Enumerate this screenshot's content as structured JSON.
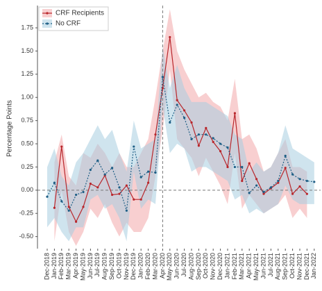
{
  "chart_data": {
    "type": "line",
    "y_label": "Percentage Points",
    "categories": [
      "Dec-2018",
      "Jan-2019",
      "Feb-2019",
      "Mar-2019",
      "Apr-2019",
      "May-2019",
      "Jun-2019",
      "Jul-2019",
      "Aug-2019",
      "Sep-2019",
      "Oct-2019",
      "Nov-2019",
      "Dec-2019",
      "Jan-2020",
      "Feb-2020",
      "Mar-2020",
      "Apr-2020",
      "May-2020",
      "Jun-2020",
      "Jul-2020",
      "Aug-2020",
      "Sep-2020",
      "Oct-2020",
      "Nov-2020",
      "Dec-2020",
      "Jan-2021",
      "Feb-2021",
      "Mar-2021",
      "Apr-2021",
      "May-2021",
      "Jun-2021",
      "Jul-2021",
      "Aug-2021",
      "Sep-2021",
      "Oct-2021",
      "Nov-2021",
      "Dec-2021",
      "Jan-2022"
    ],
    "ylim": [
      -0.63,
      1.99
    ],
    "yticks": [
      {
        "value": -0.5,
        "label": "-0.50"
      },
      {
        "value": -0.25,
        "label": "-0.25"
      },
      {
        "value": 0,
        "label": "0.00"
      },
      {
        "value": 0.25,
        "label": "0.25"
      },
      {
        "value": 0.5,
        "label": "0.50"
      },
      {
        "value": 0.75,
        "label": "0.75"
      },
      {
        "value": 1,
        "label": "1.00"
      },
      {
        "value": 1.25,
        "label": "1.25"
      },
      {
        "value": 1.5,
        "label": "1.50"
      },
      {
        "value": 1.75,
        "label": "1.75"
      }
    ],
    "hline": 0,
    "vline": "Apr-2020",
    "legend": "top-left",
    "series": [
      {
        "name": "CRF Recipients",
        "color": "#b8262b",
        "band_color": "#f2a7a9",
        "line_style": "solid",
        "values": [
          null,
          -0.19,
          0.47,
          -0.18,
          -0.34,
          -0.18,
          0.07,
          0.03,
          0.16,
          -0.05,
          -0.04,
          0.05,
          -0.1,
          -0.1,
          0.08,
          0.6,
          1.1,
          1.65,
          0.97,
          0.86,
          0.73,
          0.48,
          0.67,
          0.52,
          0.42,
          0.25,
          0.83,
          0.1,
          0.29,
          0.12,
          -0.04,
          0.02,
          0.08,
          0.24,
          -0.04,
          0.04,
          -0.04,
          null
        ],
        "upper": [
          null,
          0.3,
          0.6,
          0.15,
          0.05,
          0.4,
          0.35,
          0.5,
          0.4,
          0.25,
          0.4,
          0.25,
          0.25,
          0.4,
          0.55,
          1.0,
          1.5,
          1.95,
          1.5,
          1.3,
          1.15,
          1.0,
          1.05,
          0.95,
          0.9,
          0.75,
          1.2,
          0.55,
          0.6,
          0.45,
          0.2,
          0.25,
          0.4,
          0.55,
          0.25,
          0.25,
          0.2,
          null
        ],
        "lower": [
          null,
          -0.55,
          0.0,
          -0.45,
          -0.6,
          -0.45,
          -0.2,
          -0.3,
          -0.15,
          -0.35,
          -0.5,
          -0.35,
          -0.45,
          -0.45,
          -0.3,
          0.15,
          0.65,
          1.3,
          0.55,
          0.45,
          0.35,
          0.15,
          0.35,
          0.2,
          0.05,
          -0.15,
          0.4,
          -0.2,
          -0.05,
          -0.15,
          -0.25,
          -0.2,
          -0.15,
          -0.05,
          -0.3,
          -0.2,
          -0.3,
          null
        ]
      },
      {
        "name": "No CRF",
        "color": "#1f5f86",
        "band_color": "#a7cde0",
        "line_style": "dotted",
        "values": [
          -0.07,
          0.08,
          -0.12,
          -0.22,
          -0.05,
          -0.02,
          0.22,
          0.32,
          0.17,
          0.24,
          0.03,
          -0.22,
          0.47,
          0.14,
          0.2,
          0.19,
          1.22,
          0.73,
          0.92,
          0.78,
          0.55,
          0.6,
          0.6,
          0.56,
          0.5,
          0.46,
          0.25,
          0.25,
          -0.03,
          0.05,
          -0.02,
          0.03,
          0.1,
          0.37,
          0.17,
          0.12,
          0.1,
          0.09
        ],
        "upper": [
          0.25,
          0.45,
          0.15,
          0.05,
          0.3,
          0.4,
          0.55,
          0.7,
          0.55,
          0.65,
          0.4,
          0.2,
          0.75,
          0.45,
          0.5,
          0.55,
          1.55,
          1.1,
          1.35,
          1.1,
          0.95,
          0.95,
          0.95,
          0.9,
          0.85,
          0.8,
          0.6,
          0.55,
          0.2,
          0.3,
          0.2,
          0.25,
          0.4,
          0.7,
          0.45,
          0.4,
          0.35,
          0.3
        ],
        "lower": [
          -0.4,
          -0.3,
          -0.45,
          -0.55,
          -0.4,
          -0.4,
          -0.1,
          -0.05,
          -0.2,
          -0.15,
          -0.3,
          -0.55,
          0.2,
          -0.2,
          -0.1,
          -0.15,
          0.9,
          0.4,
          0.5,
          0.45,
          0.2,
          0.25,
          0.25,
          0.2,
          0.15,
          0.1,
          -0.1,
          -0.05,
          -0.25,
          -0.2,
          -0.25,
          -0.2,
          -0.15,
          0.05,
          -0.1,
          -0.15,
          -0.15,
          -0.15
        ]
      }
    ]
  }
}
